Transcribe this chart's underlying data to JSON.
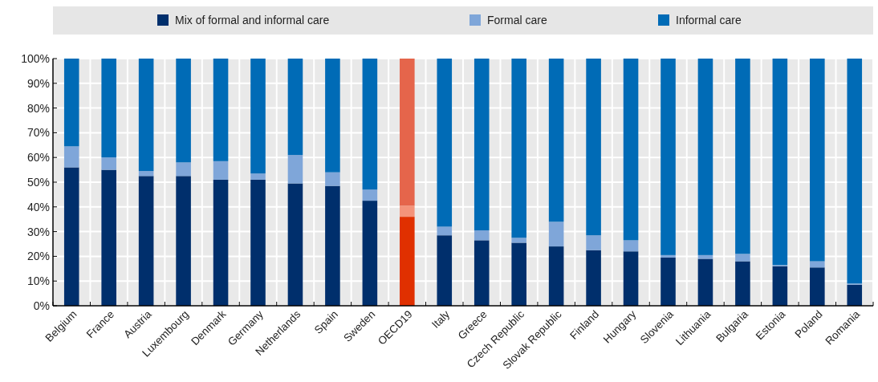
{
  "chart_data": {
    "type": "bar",
    "stacked": true,
    "categories": [
      "Belgium",
      "France",
      "Austria",
      "Luxembourg",
      "Denmark",
      "Germany",
      "Netherlands",
      "Spain",
      "Sweden",
      "OECD19",
      "Italy",
      "Greece",
      "Czech Republic",
      "Slovak Republic",
      "Finland",
      "Hungary",
      "Slovenia",
      "Lithuania",
      "Bulgaria",
      "Estonia",
      "Poland",
      "Romania"
    ],
    "series": [
      {
        "name": "Mix of formal and informal care",
        "color": "#002f6c",
        "colors": [
          "#002f6c",
          "#002f6c",
          "#002f6c",
          "#002f6c",
          "#002f6c",
          "#002f6c",
          "#002f6c",
          "#002f6c",
          "#002f6c",
          "#e03000",
          "#002f6c",
          "#002f6c",
          "#002f6c",
          "#002f6c",
          "#002f6c",
          "#002f6c",
          "#002f6c",
          "#002f6c",
          "#002f6c",
          "#002f6c",
          "#002f6c",
          "#002f6c"
        ],
        "values": [
          56,
          55,
          52.5,
          52.5,
          51,
          51,
          49.5,
          48.5,
          42.5,
          36,
          28.5,
          26.5,
          25.5,
          24,
          22.5,
          22,
          19.5,
          19,
          18,
          16,
          15.5,
          8.5
        ]
      },
      {
        "name": "Formal care",
        "color": "#7fa6d9",
        "colors": [
          "#7fa6d9",
          "#7fa6d9",
          "#7fa6d9",
          "#7fa6d9",
          "#7fa6d9",
          "#7fa6d9",
          "#7fa6d9",
          "#7fa6d9",
          "#7fa6d9",
          "#f4937a",
          "#7fa6d9",
          "#7fa6d9",
          "#7fa6d9",
          "#7fa6d9",
          "#7fa6d9",
          "#7fa6d9",
          "#7fa6d9",
          "#7fa6d9",
          "#7fa6d9",
          "#7fa6d9",
          "#7fa6d9",
          "#7fa6d9"
        ],
        "values": [
          8.5,
          5,
          2,
          5.5,
          7.5,
          2.5,
          11.5,
          5.5,
          4.5,
          4.5,
          3.5,
          4,
          2,
          10,
          6,
          4.5,
          1,
          1.5,
          3,
          0.5,
          2.5,
          0.5
        ]
      },
      {
        "name": "Informal care",
        "color": "#006bb6",
        "colors": [
          "#006bb6",
          "#006bb6",
          "#006bb6",
          "#006bb6",
          "#006bb6",
          "#006bb6",
          "#006bb6",
          "#006bb6",
          "#006bb6",
          "#e5654b",
          "#006bb6",
          "#006bb6",
          "#006bb6",
          "#006bb6",
          "#006bb6",
          "#006bb6",
          "#006bb6",
          "#006bb6",
          "#006bb6",
          "#006bb6",
          "#006bb6",
          "#006bb6"
        ],
        "values": [
          35.5,
          40,
          45.5,
          42,
          41.5,
          46.5,
          39,
          46,
          53,
          59.5,
          68,
          69.5,
          72.5,
          66,
          71.5,
          73.5,
          79.5,
          79.5,
          79,
          83.5,
          82,
          91
        ]
      }
    ],
    "ylim": [
      0,
      100
    ],
    "yticks": [
      {
        "value": 0,
        "label": "0%"
      },
      {
        "value": 10,
        "label": "10%"
      },
      {
        "value": 20,
        "label": "20%"
      },
      {
        "value": 30,
        "label": "30%"
      },
      {
        "value": 40,
        "label": "40%"
      },
      {
        "value": 50,
        "label": "50%"
      },
      {
        "value": 60,
        "label": "60%"
      },
      {
        "value": 70,
        "label": "70%"
      },
      {
        "value": 80,
        "label": "80%"
      },
      {
        "value": 90,
        "label": "90%"
      },
      {
        "value": 100,
        "label": "100%"
      }
    ],
    "grid": true,
    "legend": "top"
  }
}
